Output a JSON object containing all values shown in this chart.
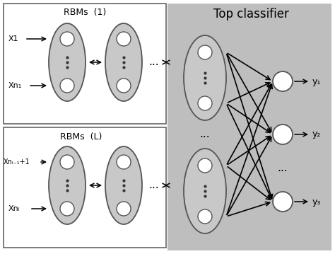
{
  "bg_color": "#ffffff",
  "gray_bg": "#bebebe",
  "ellipse_fill": "#c8c8c8",
  "ellipse_edge": "#555555",
  "node_fill": "#ffffff",
  "node_edge": "#555555",
  "title_top": "Top classifier",
  "title_rbm1": "RBMs  (1)",
  "title_rbmL": "RBMs  (L)",
  "label_X1": "X1",
  "label_Xn1": "Xn₁",
  "label_XnL1": "Xnₗ₋₁+1",
  "label_XnL": "Xnₗ",
  "label_y1": "y₁",
  "label_y2": "y₂",
  "label_y3": "y₃"
}
